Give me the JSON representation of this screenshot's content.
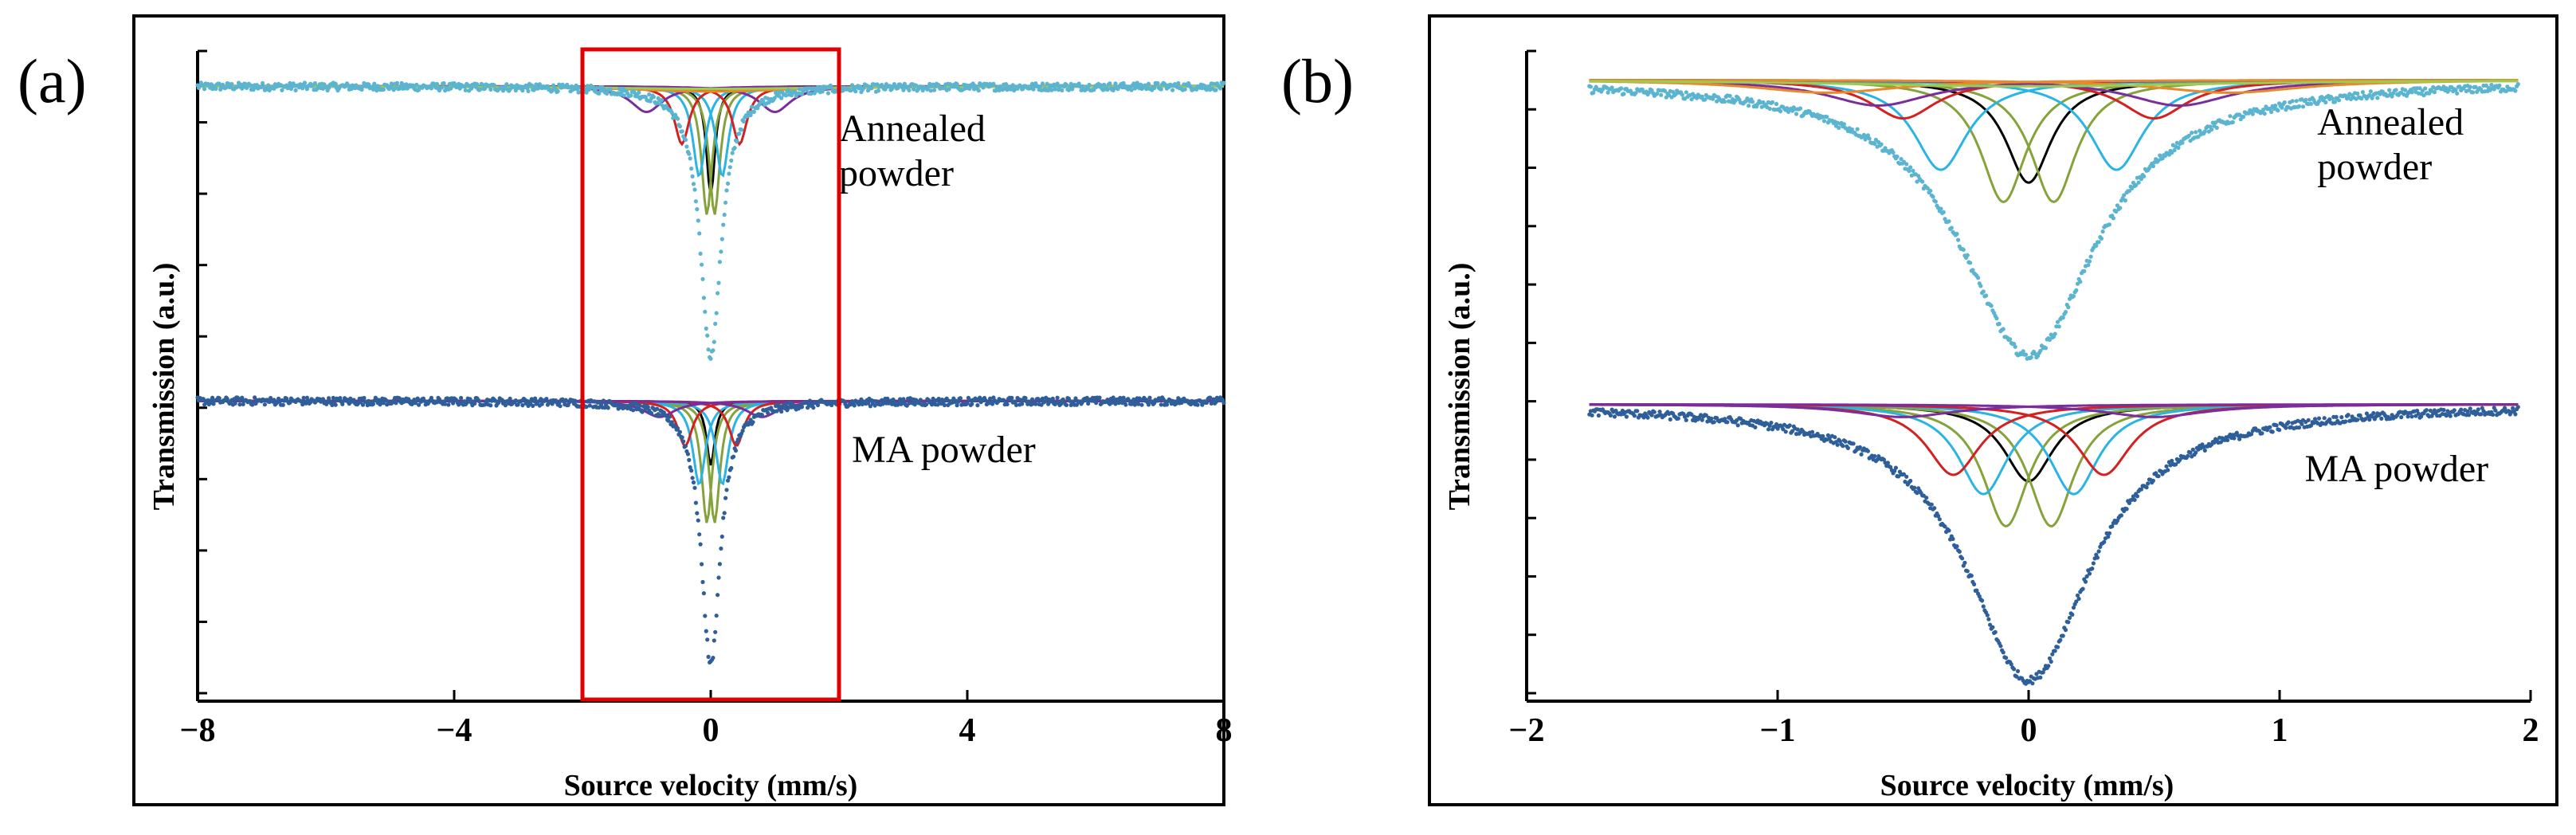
{
  "colors": {
    "frame": "#000000",
    "highlight_box": "#e00000",
    "annealed_data": "#5bb4d0",
    "ma_data": "#2f5f9a",
    "black": "#000000",
    "green": "#86a23a",
    "cyan": "#2ab4e4",
    "red": "#d42020",
    "purple": "#7a2e9a",
    "orange": "#e88a2a",
    "lightgreen": "#9acd50"
  },
  "chart_data": [
    {
      "type": "line",
      "panel_label": "(a)",
      "xlabel": "Source velocity (mm/s)",
      "ylabel": "Transmission (a.u.)",
      "xlim": [
        -8,
        8
      ],
      "ylim": [
        0,
        1
      ],
      "xticks": [
        -8,
        -4,
        0,
        4,
        8
      ],
      "xtick_labels": [
        "−8",
        "−4",
        "0",
        "4",
        "8"
      ],
      "ytick_count": 10,
      "highlight_box": {
        "x_range": [
          -2,
          2
        ],
        "y_range": [
          0,
          1
        ]
      },
      "series": [
        {
          "name": "Annealed powder",
          "label_lines": [
            "Annealed",
            "powder"
          ],
          "label_anchor": {
            "x": 2.0,
            "y": 0.86
          },
          "baseline": 0.945,
          "data_color": "#5bb4d0",
          "data_depth": 0.42,
          "data_width": 0.2,
          "components": [
            {
              "color": "#000000",
              "center": 0.0,
              "width": 0.08,
              "depth": 0.17
            },
            {
              "color": "#86a23a",
              "center": -0.06,
              "width": 0.1,
              "depth": 0.2
            },
            {
              "color": "#86a23a",
              "center": 0.06,
              "width": 0.1,
              "depth": 0.2
            },
            {
              "color": "#2ab4e4",
              "center": -0.18,
              "width": 0.12,
              "depth": 0.14
            },
            {
              "color": "#2ab4e4",
              "center": 0.18,
              "width": 0.12,
              "depth": 0.14
            },
            {
              "color": "#d42020",
              "center": -0.45,
              "width": 0.14,
              "depth": 0.09
            },
            {
              "color": "#d42020",
              "center": 0.45,
              "width": 0.14,
              "depth": 0.09
            },
            {
              "color": "#7a2e9a",
              "center": -1.0,
              "width": 0.3,
              "depth": 0.04
            },
            {
              "color": "#7a2e9a",
              "center": 1.0,
              "width": 0.3,
              "depth": 0.04
            },
            {
              "color": "#e88a2a",
              "center": 0.0,
              "width": 1.5,
              "depth": 0.008
            },
            {
              "color": "#9acd50",
              "center": 0.0,
              "width": 2.0,
              "depth": 0.004
            }
          ]
        },
        {
          "name": "MA powder",
          "label_lines": [
            "MA powder"
          ],
          "label_anchor": {
            "x": 2.2,
            "y": 0.36
          },
          "baseline": 0.455,
          "data_color": "#2f5f9a",
          "data_depth": 0.41,
          "data_width": 0.18,
          "components": [
            {
              "color": "#000000",
              "center": 0.0,
              "width": 0.08,
              "depth": 0.1
            },
            {
              "color": "#86a23a",
              "center": -0.06,
              "width": 0.1,
              "depth": 0.19
            },
            {
              "color": "#86a23a",
              "center": 0.06,
              "width": 0.1,
              "depth": 0.19
            },
            {
              "color": "#2ab4e4",
              "center": -0.18,
              "width": 0.12,
              "depth": 0.13
            },
            {
              "color": "#2ab4e4",
              "center": 0.18,
              "width": 0.12,
              "depth": 0.13
            },
            {
              "color": "#d42020",
              "center": -0.4,
              "width": 0.14,
              "depth": 0.07
            },
            {
              "color": "#d42020",
              "center": 0.4,
              "width": 0.14,
              "depth": 0.07
            },
            {
              "color": "#7a2e9a",
              "center": -0.8,
              "width": 0.3,
              "depth": 0.025
            },
            {
              "color": "#7a2e9a",
              "center": 0.8,
              "width": 0.3,
              "depth": 0.025
            }
          ]
        }
      ]
    },
    {
      "type": "line",
      "panel_label": "(b)",
      "xlabel": "Source velocity (mm/s)",
      "ylabel": "Transmission (a.u.)",
      "xlim": [
        -2,
        2
      ],
      "ylim": [
        0,
        1
      ],
      "xticks": [
        -2,
        -1,
        0,
        1,
        2
      ],
      "xtick_labels": [
        "−2",
        "−1",
        "0",
        "1",
        "2"
      ],
      "ytick_count": 12,
      "data_x_range": [
        -1.75,
        1.95
      ],
      "series": [
        {
          "name": "Annealed powder",
          "label_lines": [
            "Annealed",
            "powder"
          ],
          "label_anchor": {
            "x": 1.15,
            "y": 0.87
          },
          "baseline": 0.955,
          "data_color": "#5bb4d0",
          "data_depth": 0.43,
          "data_width": 0.33,
          "components": [
            {
              "color": "#000000",
              "center": 0.0,
              "width": 0.11,
              "depth": 0.16
            },
            {
              "color": "#86a23a",
              "center": -0.1,
              "width": 0.11,
              "depth": 0.19
            },
            {
              "color": "#86a23a",
              "center": 0.1,
              "width": 0.11,
              "depth": 0.19
            },
            {
              "color": "#2ab4e4",
              "center": -0.35,
              "width": 0.13,
              "depth": 0.14
            },
            {
              "color": "#2ab4e4",
              "center": 0.35,
              "width": 0.13,
              "depth": 0.14
            },
            {
              "color": "#d42020",
              "center": -0.5,
              "width": 0.16,
              "depth": 0.06
            },
            {
              "color": "#d42020",
              "center": 0.5,
              "width": 0.16,
              "depth": 0.06
            },
            {
              "color": "#7a2e9a",
              "center": -0.6,
              "width": 0.25,
              "depth": 0.04
            },
            {
              "color": "#7a2e9a",
              "center": 0.6,
              "width": 0.25,
              "depth": 0.04
            },
            {
              "color": "#e88a2a",
              "center": -0.8,
              "width": 0.35,
              "depth": 0.02
            },
            {
              "color": "#e88a2a",
              "center": 0.8,
              "width": 0.35,
              "depth": 0.02
            },
            {
              "color": "#9acd50",
              "center": 0.0,
              "width": 0.9,
              "depth": 0.01
            }
          ]
        },
        {
          "name": "MA powder",
          "label_lines": [
            "MA powder"
          ],
          "label_anchor": {
            "x": 1.1,
            "y": 0.33
          },
          "baseline": 0.45,
          "data_color": "#2f5f9a",
          "data_depth": 0.43,
          "data_width": 0.3,
          "components": [
            {
              "color": "#000000",
              "center": 0.0,
              "width": 0.12,
              "depth": 0.12
            },
            {
              "color": "#86a23a",
              "center": -0.09,
              "width": 0.11,
              "depth": 0.19
            },
            {
              "color": "#86a23a",
              "center": 0.09,
              "width": 0.11,
              "depth": 0.19
            },
            {
              "color": "#2ab4e4",
              "center": -0.18,
              "width": 0.12,
              "depth": 0.14
            },
            {
              "color": "#2ab4e4",
              "center": 0.18,
              "width": 0.12,
              "depth": 0.14
            },
            {
              "color": "#d42020",
              "center": -0.3,
              "width": 0.13,
              "depth": 0.11
            },
            {
              "color": "#d42020",
              "center": 0.3,
              "width": 0.13,
              "depth": 0.11
            },
            {
              "color": "#7a2e9a",
              "center": -0.5,
              "width": 0.25,
              "depth": 0.02
            },
            {
              "color": "#7a2e9a",
              "center": 0.5,
              "width": 0.25,
              "depth": 0.02
            }
          ]
        }
      ]
    }
  ]
}
